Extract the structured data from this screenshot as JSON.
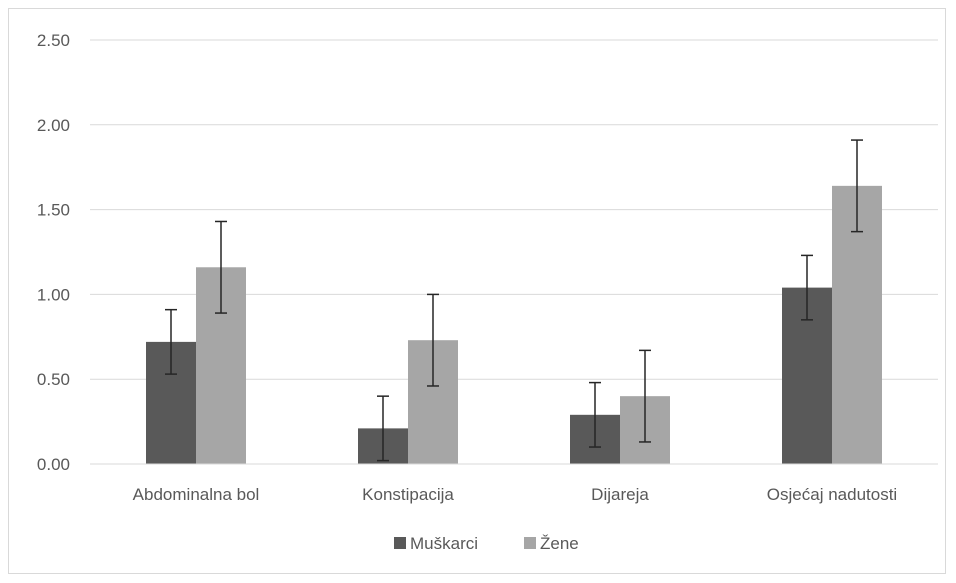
{
  "chart_data": {
    "type": "bar",
    "title": "",
    "xlabel": "",
    "ylabel": "",
    "categories": [
      "Abdominalna bol",
      "Konstipacija",
      "Dijareja",
      "Osjećaj nadutosti"
    ],
    "series": [
      {
        "name": "Muškarci",
        "color": "#595959",
        "values": [
          0.72,
          0.21,
          0.29,
          1.04
        ],
        "error": [
          0.19,
          0.19,
          0.19,
          0.19
        ]
      },
      {
        "name": "Žene",
        "color": "#a6a6a6",
        "values": [
          1.16,
          0.73,
          0.4,
          1.64
        ],
        "error": [
          0.27,
          0.27,
          0.27,
          0.27
        ]
      }
    ],
    "ylim": [
      0,
      2.5
    ],
    "yticks": [
      "0.00",
      "0.50",
      "1.00",
      "1.50",
      "2.00",
      "2.50"
    ],
    "grid": true,
    "legend_position": "bottom"
  }
}
